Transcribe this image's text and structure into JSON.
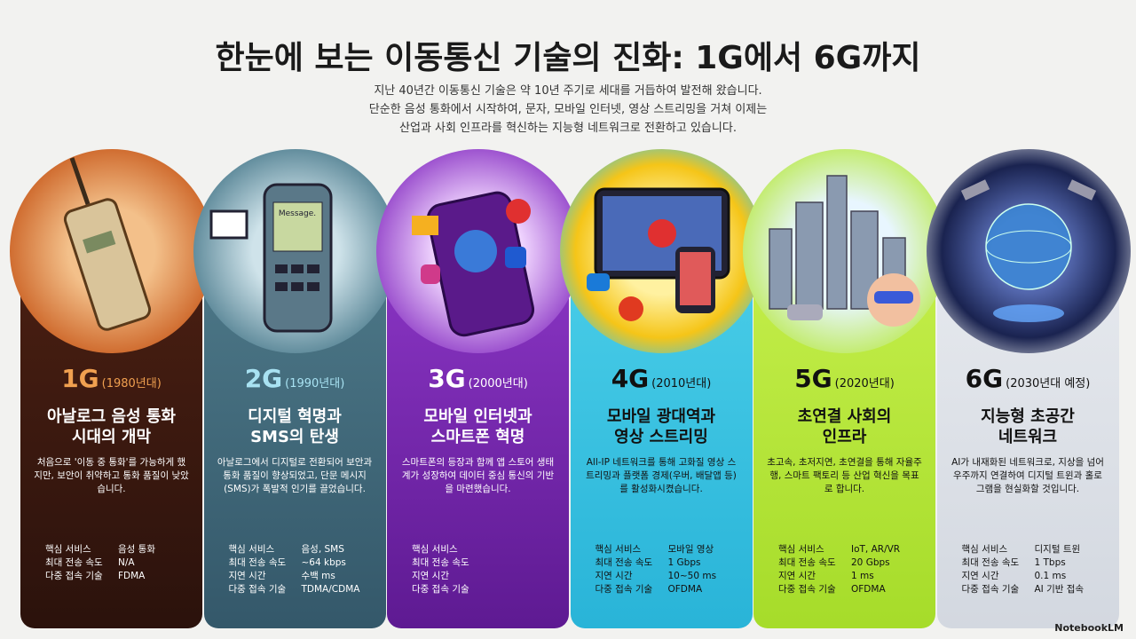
{
  "header": {
    "title": "한눈에 보는 이동통신 기술의 진화: 1G에서 6G까지",
    "subtitle": [
      "지난 40년간 이동통신 기술은 약 10년 주기로 세대를 거듭하여 발전해 왔습니다.",
      "단순한 음성 통화에서 시작하여, 문자, 모바일 인터넷, 영상 스트리밍을 거쳐 이제는",
      "산업과 사회 인프라를 혁신하는 지능형 네트워크로 전환하고 있습니다."
    ]
  },
  "generations": [
    {
      "gen": "1G",
      "era": "(1980년대)",
      "heading": [
        "아날로그 음성 통화",
        "시대의 개막"
      ],
      "description": "처음으로 '이동 중 통화'를 가능하게 했지만, 보안이 취약하고 통화 품질이 낮았습니다.",
      "specs": [
        {
          "label": "핵심 서비스",
          "value": "음성 통화"
        },
        {
          "label": "최대 전송 속도",
          "value": "N/A"
        },
        {
          "label": "다중 접속 기술",
          "value": "FDMA"
        }
      ]
    },
    {
      "gen": "2G",
      "era": "(1990년대)",
      "heading": [
        "디지털 혁명과",
        "SMS의 탄생"
      ],
      "illustration_text": "Message.",
      "description": "아날로그에서 디지털로 전환되어 보안과 통화 품질이 향상되었고, 단문 메시지(SMS)가 폭발적 인기를 끌었습니다.",
      "specs": [
        {
          "label": "핵심 서비스",
          "value": "음성, SMS"
        },
        {
          "label": "최대 전송 속도",
          "value": "~64 kbps"
        },
        {
          "label": "지연 시간",
          "value": "수백 ms"
        },
        {
          "label": "다중 접속 기술",
          "value": "TDMA/CDMA"
        }
      ]
    },
    {
      "gen": "3G",
      "era": "(2000년대)",
      "heading": [
        "모바일 인터넷과",
        "스마트폰 혁명"
      ],
      "description": "스마트폰의 등장과 함께 앱 스토어 생태계가 성장하여 데이터 중심 통신의 기반을 마련했습니다.",
      "specs": [
        {
          "label": "핵심 서비스"
        },
        {
          "label": "최대 전송 속도"
        },
        {
          "label": "지연 시간"
        },
        {
          "label": "다중 접속 기술"
        }
      ]
    },
    {
      "gen": "4G",
      "era": "(2010년대)",
      "heading": [
        "모바일 광대역과",
        "영상 스트리밍"
      ],
      "description": "All-IP 네트워크를 통해 고화질 영상 스트리밍과 플랫폼 경제(우버, 배달앱 등)를 활성화시켰습니다.",
      "specs": [
        {
          "label": "핵심 서비스",
          "value": "모바일 영상"
        },
        {
          "label": "최대 전송 속도",
          "value": "1 Gbps"
        },
        {
          "label": "지연 시간",
          "value": "10~50 ms"
        },
        {
          "label": "다중 접속 기술",
          "value": "OFDMA"
        }
      ]
    },
    {
      "gen": "5G",
      "era": "(2020년대)",
      "heading": [
        "초연결 사회의",
        "인프라"
      ],
      "description": "초고속, 초저지연, 초연결을 통해 자율주행, 스마트 팩토리 등 산업 혁신을 목표로 합니다.",
      "specs": [
        {
          "label": "핵심 서비스",
          "value": "IoT, AR/VR"
        },
        {
          "label": "최대 전송 속도",
          "value": "20 Gbps"
        },
        {
          "label": "지연 시간",
          "value": "1 ms"
        },
        {
          "label": "다중 접속 기술",
          "value": "OFDMA"
        }
      ]
    },
    {
      "gen": "6G",
      "era": "(2030년대 예정)",
      "heading": [
        "지능형 초공간",
        "네트워크"
      ],
      "description": "AI가 내재화된 네트워크로, 지상을 넘어 우주까지 연결하여 디지털 트윈과 홀로그램을 현실화할 것입니다.",
      "specs": [
        {
          "label": "핵심 서비스",
          "value": "디지털 트윈"
        },
        {
          "label": "최대 전송 속도",
          "value": "1 Tbps"
        },
        {
          "label": "지연 시간",
          "value": "0.1 ms"
        },
        {
          "label": "다중 접속 기술",
          "value": "AI 기반 접속"
        }
      ]
    }
  ],
  "footer": {
    "brand": "NotebookLM"
  }
}
